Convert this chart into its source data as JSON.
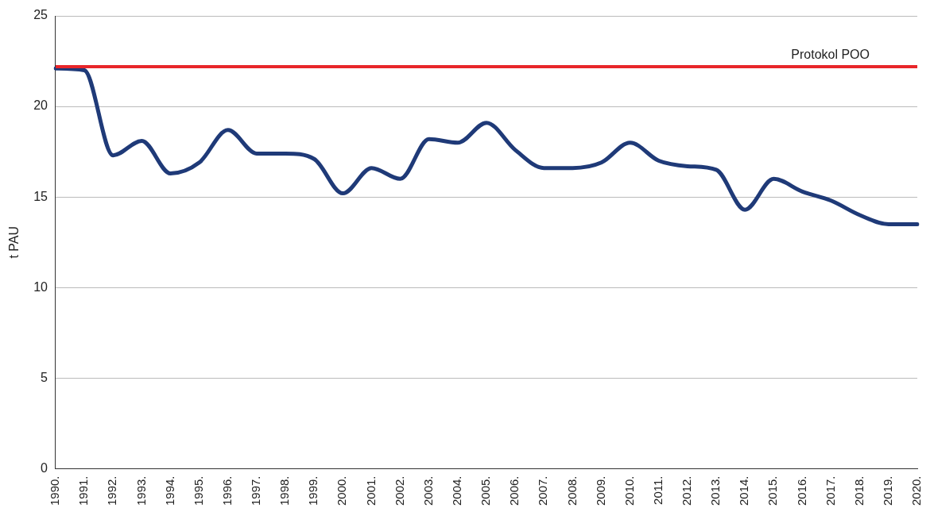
{
  "chart_data": {
    "type": "line",
    "ylabel": "t PAU",
    "categories": [
      "1990.",
      "1991.",
      "1992.",
      "1993.",
      "1994.",
      "1995.",
      "1996.",
      "1997.",
      "1998.",
      "1999.",
      "2000.",
      "2001.",
      "2002.",
      "2003.",
      "2004.",
      "2005.",
      "2006.",
      "2007.",
      "2008.",
      "2009.",
      "2010.",
      "2011.",
      "2012.",
      "2013.",
      "2014.",
      "2015.",
      "2016.",
      "2017.",
      "2018.",
      "2019.",
      "2020."
    ],
    "series": [
      {
        "color": "#1f3a78",
        "values": [
          22.1,
          22.0,
          17.3,
          18.1,
          16.3,
          16.9,
          18.7,
          17.4,
          17.4,
          17.1,
          15.2,
          16.6,
          16.0,
          18.2,
          18.0,
          19.1,
          17.6,
          16.6,
          16.6,
          16.9,
          18.0,
          17.0,
          16.7,
          16.5,
          14.3,
          16.0,
          15.3,
          14.8,
          14.0,
          13.5,
          13.5
        ]
      }
    ],
    "ylim": [
      0,
      25
    ],
    "yticks": [
      0,
      5,
      10,
      15,
      20,
      25
    ],
    "grid": "y",
    "legend": false,
    "marker": "none",
    "line_style": "solid",
    "ref_lines": [
      {
        "axis": "y",
        "value": 22.2,
        "label": "Protokol POO",
        "color": "#e8262a"
      }
    ]
  }
}
